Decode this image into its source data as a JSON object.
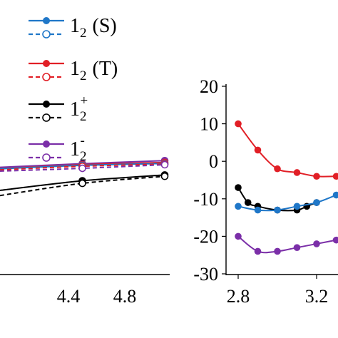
{
  "chart_data": [
    {
      "type": "line",
      "panel": "left",
      "xlim": [
        4.0,
        5.0
      ],
      "xticks": [
        "4.4",
        "4.8"
      ],
      "legend_placement": "top",
      "legend": [
        {
          "base": "1",
          "sub": "2",
          "sup": "",
          "tag": "(S)",
          "color": "#1f77c8"
        },
        {
          "base": "1",
          "sub": "2",
          "sup": "",
          "tag": "(T)",
          "color": "#e11f26"
        },
        {
          "base": "1",
          "sub": "2",
          "sup": "+",
          "tag": "",
          "color": "#000000"
        },
        {
          "base": "1",
          "sub": "2",
          "sup": "-",
          "tag": "",
          "color": "#7b2fa8"
        }
      ],
      "series": [
        {
          "color": "#7b2fa8",
          "style": "solid",
          "x": [
            4.0,
            4.5,
            5.0
          ],
          "y": [
            0.3,
            0.58,
            0.82
          ]
        },
        {
          "color": "#e11f26",
          "style": "solid",
          "x": [
            4.0,
            4.5,
            5.0
          ],
          "y": [
            0.2,
            0.5,
            0.68
          ]
        },
        {
          "color": "#1f77c8",
          "style": "solid",
          "x": [
            4.0,
            4.5,
            5.0
          ],
          "y": [
            0.18,
            0.45,
            0.6
          ]
        },
        {
          "color": "#e11f26",
          "style": "dashed",
          "x": [
            4.0,
            4.5,
            5.0
          ],
          "y": [
            0.1,
            0.38,
            0.55
          ]
        },
        {
          "color": "#7b2fa8",
          "style": "dashed",
          "x": [
            4.0,
            4.5,
            5.0
          ],
          "y": [
            0.0,
            0.22,
            0.5
          ]
        },
        {
          "color": "#000000",
          "style": "solid",
          "x": [
            4.0,
            4.5,
            5.0
          ],
          "y": [
            -1.5,
            -0.75,
            -0.3
          ]
        },
        {
          "color": "#000000",
          "style": "dashed",
          "x": [
            4.0,
            4.5,
            5.0
          ],
          "y": [
            -1.9,
            -0.95,
            -0.4
          ]
        }
      ]
    },
    {
      "type": "line",
      "panel": "right",
      "xlim": [
        2.8,
        3.3
      ],
      "ylim": [
        -30,
        20
      ],
      "xticks": [
        "2.8",
        "3.2"
      ],
      "yticks": [
        "20",
        "10",
        "0",
        "-10",
        "-20",
        "-30"
      ],
      "series": [
        {
          "color": "#e11f26",
          "x": [
            2.8,
            2.9,
            3.0,
            3.1,
            3.2,
            3.3
          ],
          "y": [
            10,
            3,
            -2,
            -3,
            -4,
            -4
          ]
        },
        {
          "color": "#000000",
          "x": [
            2.8,
            2.85,
            2.9,
            3.0,
            3.1,
            3.15,
            3.2
          ],
          "y": [
            -7,
            -11,
            -12,
            -13,
            -13,
            -12,
            -11
          ]
        },
        {
          "color": "#1f77c8",
          "x": [
            2.8,
            2.9,
            3.0,
            3.1,
            3.2,
            3.3
          ],
          "y": [
            -12,
            -13,
            -13,
            -12,
            -11,
            -9
          ]
        },
        {
          "color": "#7b2fa8",
          "x": [
            2.8,
            2.9,
            3.0,
            3.1,
            3.2,
            3.3
          ],
          "y": [
            -20,
            -24,
            -24,
            -23,
            -22,
            -21
          ]
        }
      ]
    }
  ]
}
